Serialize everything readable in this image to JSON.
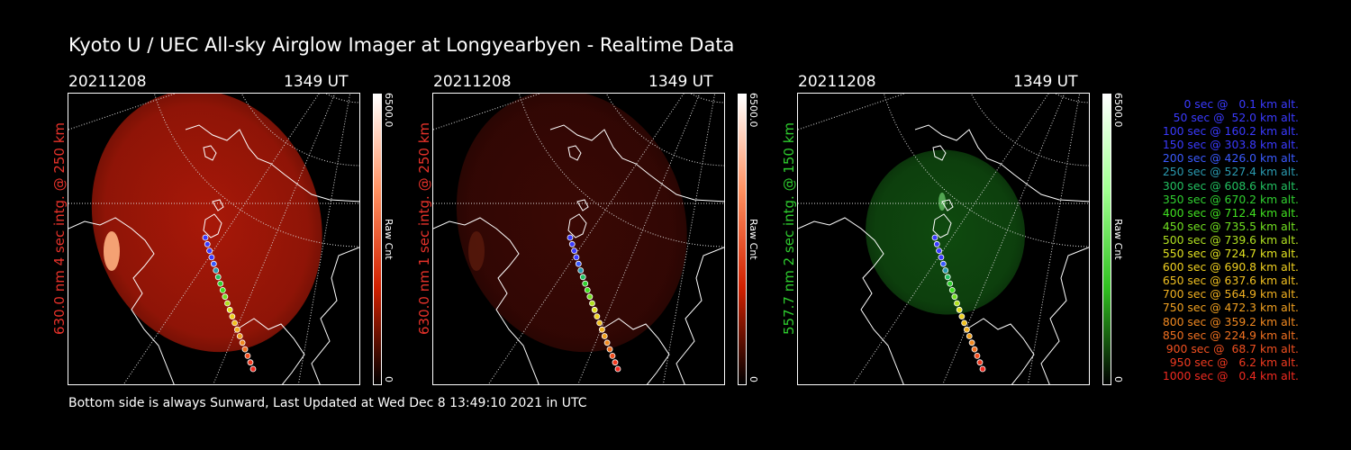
{
  "header": {
    "title": "Kyoto U / UEC All-sky Airglow Imager at Longyearbyen - Realtime Data"
  },
  "footer": {
    "text": "Bottom side is always Sunward, Last Updated at Wed Dec  8 13:49:10 2021 in UTC"
  },
  "panels": [
    {
      "date": "20211208",
      "time": "1349 UT",
      "label": "630.0 nm 4 sec intg. @ 250 km",
      "label_color": "#e8322a",
      "colorbar": {
        "max": "6500.0",
        "min": "0",
        "unit": "Raw Cnt",
        "color": "#d02000"
      },
      "glow_color": "#a81808"
    },
    {
      "date": "20211208",
      "time": "1349 UT",
      "label": "630.0 nm 1 sec intg. @ 250 km",
      "label_color": "#e8322a",
      "colorbar": {
        "max": "6500.0",
        "min": "0",
        "unit": "Raw Cnt",
        "color": "#d02000"
      },
      "glow_color": "#3a0804"
    },
    {
      "date": "20211208",
      "time": "1349 UT",
      "label": "557.7 nm 2 sec intg. @ 150 km",
      "label_color": "#2ecc2e",
      "colorbar": {
        "max": "6500.0",
        "min": "0",
        "unit": "Raw Cnt",
        "color": "#30c020"
      },
      "glow_color": "#0f4a0f"
    }
  ],
  "legend": [
    {
      "text": "0 sec @   0.1 km alt.",
      "color": "#3a3aff"
    },
    {
      "text": "50 sec @  52.0 km alt.",
      "color": "#3a3aff"
    },
    {
      "text": "100 sec @ 160.2 km alt.",
      "color": "#3a3aff"
    },
    {
      "text": "150 sec @ 303.8 km alt.",
      "color": "#3a3aff"
    },
    {
      "text": "200 sec @ 426.0 km alt.",
      "color": "#3a5aff"
    },
    {
      "text": "250 sec @ 527.4 km alt.",
      "color": "#2a9ab0"
    },
    {
      "text": "300 sec @ 608.6 km alt.",
      "color": "#22c060"
    },
    {
      "text": "350 sec @ 670.2 km alt.",
      "color": "#30d030"
    },
    {
      "text": "400 sec @ 712.4 km alt.",
      "color": "#40e020"
    },
    {
      "text": "450 sec @ 735.5 km alt.",
      "color": "#70e020"
    },
    {
      "text": "500 sec @ 739.6 km alt.",
      "color": "#b0e020"
    },
    {
      "text": "550 sec @ 724.7 km alt.",
      "color": "#e0e020"
    },
    {
      "text": "600 sec @ 690.8 km alt.",
      "color": "#f0d020"
    },
    {
      "text": "650 sec @ 637.6 km alt.",
      "color": "#f0c020"
    },
    {
      "text": "700 sec @ 564.9 km alt.",
      "color": "#f0b020"
    },
    {
      "text": "750 sec @ 472.3 km alt.",
      "color": "#f0a020"
    },
    {
      "text": "800 sec @ 359.2 km alt.",
      "color": "#f08820"
    },
    {
      "text": "850 sec @ 224.9 km alt.",
      "color": "#f07020"
    },
    {
      "text": "900 sec @  68.7 km alt.",
      "color": "#f05020"
    },
    {
      "text": "950 sec @   6.2 km alt.",
      "color": "#f03a20"
    },
    {
      "text": "1000 sec @   0.4 km alt.",
      "color": "#f02a20"
    }
  ]
}
